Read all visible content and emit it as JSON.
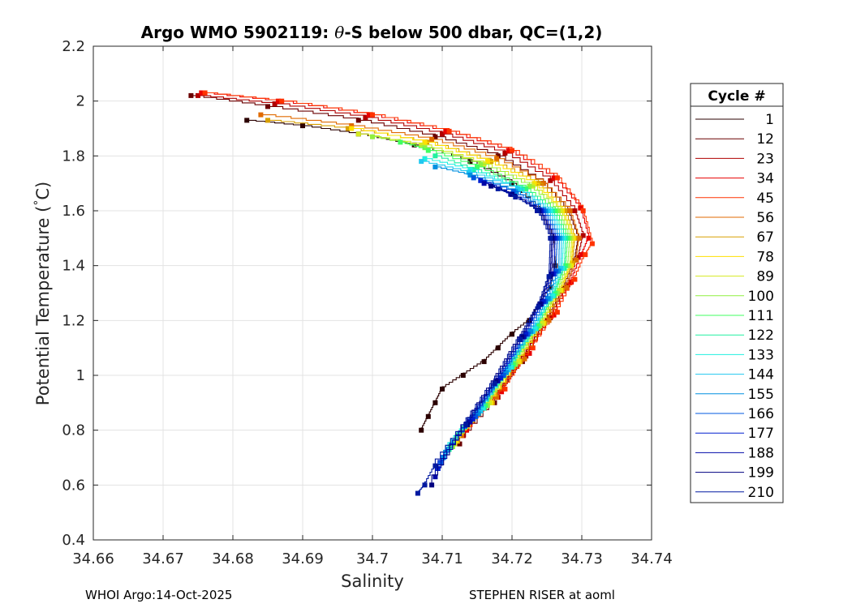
{
  "title": {
    "prefix": "Argo WMO 5902119: ",
    "theta": "θ",
    "suffix": "-S below 500 dbar,  QC=(1,2)"
  },
  "footer": {
    "left": "WHOI Argo:14-Oct-2025",
    "right": "STEPHEN RISER at aoml"
  },
  "chart_data": {
    "type": "line",
    "xlabel": "Salinity",
    "ylabel_main": "Potential Temperature (",
    "ylabel_deg": "°",
    "ylabel_unit": "C)",
    "xlim": [
      34.66,
      34.74
    ],
    "ylim": [
      0.4,
      2.2
    ],
    "xticks": [
      34.66,
      34.67,
      34.68,
      34.69,
      34.7,
      34.71,
      34.72,
      34.73,
      34.74
    ],
    "xtick_labels": [
      "34.66",
      "34.67",
      "34.68",
      "34.69",
      "34.7",
      "34.71",
      "34.72",
      "34.73",
      "34.74"
    ],
    "yticks": [
      0.4,
      0.6,
      0.8,
      1.0,
      1.2,
      1.4,
      1.6,
      1.8,
      2.0,
      2.2
    ],
    "ytick_labels": [
      "0.4",
      "0.6",
      "0.8",
      "1",
      "1.2",
      "1.4",
      "1.6",
      "1.8",
      "2",
      "2.2"
    ],
    "grid": true,
    "legend": {
      "title": "Cycle #",
      "position": "right",
      "entries": [
        {
          "label": "1",
          "color": "#2b0000"
        },
        {
          "label": "12",
          "color": "#6b0000"
        },
        {
          "label": "23",
          "color": "#b00000"
        },
        {
          "label": "34",
          "color": "#e80000"
        },
        {
          "label": "45",
          "color": "#ff3300"
        },
        {
          "label": "56",
          "color": "#e06a00"
        },
        {
          "label": "67",
          "color": "#d8a000"
        },
        {
          "label": "78",
          "color": "#ffe000"
        },
        {
          "label": "89",
          "color": "#d4ea20"
        },
        {
          "label": "100",
          "color": "#90f040"
        },
        {
          "label": "111",
          "color": "#40ff60"
        },
        {
          "label": "122",
          "color": "#20f0a0"
        },
        {
          "label": "133",
          "color": "#20f0e0"
        },
        {
          "label": "144",
          "color": "#20c8f0"
        },
        {
          "label": "155",
          "color": "#0090e0"
        },
        {
          "label": "166",
          "color": "#0058e0"
        },
        {
          "label": "177",
          "color": "#0020d0"
        },
        {
          "label": "188",
          "color": "#0008a8"
        },
        {
          "label": "199",
          "color": "#000080"
        },
        {
          "label": "210",
          "color": "#0018a0"
        }
      ]
    },
    "series": [
      {
        "name": "1",
        "color": "#2b0000",
        "S": [
          34.707,
          34.708,
          34.709,
          34.71,
          34.713,
          34.716,
          34.718,
          34.72,
          34.7225,
          34.724,
          34.7255,
          34.7262,
          34.726,
          34.724,
          34.72,
          34.714,
          34.706,
          34.698,
          34.69,
          34.682
        ],
        "T": [
          0.8,
          0.85,
          0.9,
          0.95,
          1.0,
          1.05,
          1.1,
          1.15,
          1.2,
          1.26,
          1.32,
          1.4,
          1.5,
          1.6,
          1.7,
          1.78,
          1.84,
          1.88,
          1.91,
          1.93
        ]
      },
      {
        "name": "12",
        "color": "#6b0000",
        "S": [
          34.7125,
          34.7175,
          34.7215,
          34.725,
          34.7275,
          34.729,
          34.7295,
          34.728,
          34.7245,
          34.718,
          34.709,
          34.698,
          34.685,
          34.674
        ],
        "T": [
          0.75,
          0.9,
          1.05,
          1.2,
          1.32,
          1.42,
          1.5,
          1.6,
          1.7,
          1.8,
          1.87,
          1.93,
          1.98,
          2.02
        ]
      },
      {
        "name": "23",
        "color": "#b00000",
        "S": [
          34.713,
          34.718,
          34.722,
          34.7255,
          34.728,
          34.7295,
          34.7302,
          34.729,
          34.7255,
          34.719,
          34.71,
          34.699,
          34.686,
          34.675
        ],
        "T": [
          0.78,
          0.92,
          1.07,
          1.21,
          1.33,
          1.43,
          1.51,
          1.6,
          1.71,
          1.81,
          1.88,
          1.94,
          1.99,
          2.02
        ]
      },
      {
        "name": "34",
        "color": "#e80000",
        "S": [
          34.7135,
          34.7185,
          34.7225,
          34.726,
          34.7285,
          34.73,
          34.731,
          34.7298,
          34.726,
          34.7195,
          34.7105,
          34.6995,
          34.6865,
          34.6755
        ],
        "T": [
          0.8,
          0.94,
          1.08,
          1.22,
          1.34,
          1.44,
          1.5,
          1.61,
          1.72,
          1.82,
          1.89,
          1.95,
          2.0,
          2.03
        ]
      },
      {
        "name": "45",
        "color": "#ff3300",
        "S": [
          34.714,
          34.719,
          34.723,
          34.7265,
          34.729,
          34.7305,
          34.7315,
          34.7302,
          34.7265,
          34.72,
          34.711,
          34.7,
          34.687,
          34.676
        ],
        "T": [
          0.82,
          0.95,
          1.1,
          1.23,
          1.35,
          1.44,
          1.48,
          1.6,
          1.72,
          1.82,
          1.89,
          1.95,
          2.0,
          2.03
        ]
      },
      {
        "name": "56",
        "color": "#e06a00",
        "S": [
          34.7128,
          34.7178,
          34.7218,
          34.7253,
          34.7278,
          34.7292,
          34.7296,
          34.7283,
          34.7245,
          34.7178,
          34.7085,
          34.697,
          34.684
        ],
        "T": [
          0.78,
          0.92,
          1.06,
          1.2,
          1.32,
          1.42,
          1.5,
          1.6,
          1.7,
          1.79,
          1.86,
          1.91,
          1.95
        ]
      },
      {
        "name": "67",
        "color": "#d8a000",
        "S": [
          34.7122,
          34.7172,
          34.7212,
          34.7247,
          34.7272,
          34.7287,
          34.729,
          34.7276,
          34.7238,
          34.717,
          34.7078,
          34.6965,
          34.685
        ],
        "T": [
          0.76,
          0.9,
          1.05,
          1.19,
          1.31,
          1.41,
          1.5,
          1.6,
          1.7,
          1.78,
          1.85,
          1.9,
          1.93
        ]
      },
      {
        "name": "78",
        "color": "#ffe000",
        "S": [
          34.712,
          34.717,
          34.721,
          34.7245,
          34.727,
          34.7285,
          34.7288,
          34.7272,
          34.7232,
          34.7165,
          34.7075,
          34.697
        ],
        "T": [
          0.76,
          0.9,
          1.05,
          1.19,
          1.31,
          1.4,
          1.5,
          1.6,
          1.7,
          1.78,
          1.85,
          1.9
        ]
      },
      {
        "name": "89",
        "color": "#d4ea20",
        "S": [
          34.7118,
          34.7168,
          34.7208,
          34.7243,
          34.7268,
          34.7283,
          34.7286,
          34.727,
          34.723,
          34.716,
          34.707,
          34.698
        ],
        "T": [
          0.75,
          0.9,
          1.05,
          1.19,
          1.31,
          1.4,
          1.5,
          1.6,
          1.69,
          1.77,
          1.84,
          1.88
        ]
      },
      {
        "name": "100",
        "color": "#90f040",
        "S": [
          34.7115,
          34.7165,
          34.7205,
          34.724,
          34.7265,
          34.728,
          34.7283,
          34.7266,
          34.7225,
          34.7155,
          34.7075,
          34.7
        ],
        "T": [
          0.74,
          0.89,
          1.04,
          1.18,
          1.3,
          1.4,
          1.5,
          1.6,
          1.69,
          1.77,
          1.83,
          1.87
        ]
      },
      {
        "name": "111",
        "color": "#40ff60",
        "S": [
          34.7112,
          34.7162,
          34.7202,
          34.7237,
          34.7262,
          34.7277,
          34.728,
          34.7262,
          34.722,
          34.715,
          34.708,
          34.704
        ],
        "T": [
          0.74,
          0.89,
          1.04,
          1.18,
          1.3,
          1.4,
          1.5,
          1.6,
          1.68,
          1.76,
          1.82,
          1.85
        ]
      },
      {
        "name": "122",
        "color": "#20f0a0",
        "S": [
          34.711,
          34.716,
          34.72,
          34.7235,
          34.726,
          34.7275,
          34.7277,
          34.7258,
          34.7215,
          34.7145,
          34.709
        ],
        "T": [
          0.73,
          0.88,
          1.03,
          1.17,
          1.29,
          1.39,
          1.5,
          1.6,
          1.68,
          1.75,
          1.8
        ]
      },
      {
        "name": "133",
        "color": "#20f0e0",
        "S": [
          34.7108,
          34.7158,
          34.7198,
          34.7233,
          34.7258,
          34.7272,
          34.7274,
          34.7255,
          34.721,
          34.714,
          34.7075
        ],
        "T": [
          0.73,
          0.88,
          1.03,
          1.17,
          1.29,
          1.39,
          1.5,
          1.6,
          1.68,
          1.75,
          1.79
        ]
      },
      {
        "name": "144",
        "color": "#20c8f0",
        "S": [
          34.7105,
          34.7155,
          34.7195,
          34.723,
          34.7255,
          34.727,
          34.7271,
          34.7252,
          34.7208,
          34.7138,
          34.707
        ],
        "T": [
          0.72,
          0.87,
          1.02,
          1.16,
          1.28,
          1.39,
          1.5,
          1.6,
          1.68,
          1.74,
          1.78
        ]
      },
      {
        "name": "155",
        "color": "#0090e0",
        "S": [
          34.7102,
          34.7152,
          34.7192,
          34.7227,
          34.7252,
          34.7267,
          34.7268,
          34.7248,
          34.7205,
          34.714,
          34.709
        ],
        "T": [
          0.7,
          0.86,
          1.01,
          1.16,
          1.28,
          1.38,
          1.5,
          1.6,
          1.67,
          1.73,
          1.76
        ]
      },
      {
        "name": "166",
        "color": "#0058e0",
        "S": [
          34.7098,
          34.7148,
          34.7188,
          34.7223,
          34.7248,
          34.7263,
          34.7265,
          34.7245,
          34.7202,
          34.7145
        ],
        "T": [
          0.68,
          0.85,
          1.0,
          1.15,
          1.27,
          1.38,
          1.5,
          1.6,
          1.67,
          1.72
        ]
      },
      {
        "name": "177",
        "color": "#0020d0",
        "S": [
          34.7094,
          34.7144,
          34.7184,
          34.722,
          34.7245,
          34.726,
          34.7262,
          34.7242,
          34.72,
          34.7155
        ],
        "T": [
          0.66,
          0.84,
          0.99,
          1.15,
          1.27,
          1.37,
          1.5,
          1.6,
          1.66,
          1.71
        ]
      },
      {
        "name": "188",
        "color": "#0008a8",
        "S": [
          34.709,
          34.714,
          34.718,
          34.7217,
          34.7242,
          34.7257,
          34.7259,
          34.724,
          34.7198,
          34.716
        ],
        "T": [
          0.63,
          0.83,
          0.98,
          1.14,
          1.26,
          1.37,
          1.5,
          1.6,
          1.66,
          1.7
        ]
      },
      {
        "name": "199",
        "color": "#000080",
        "S": [
          34.7085,
          34.7136,
          34.7177,
          34.7214,
          34.724,
          34.7255,
          34.7257,
          34.7238,
          34.72,
          34.717
        ],
        "T": [
          0.6,
          0.82,
          0.98,
          1.14,
          1.26,
          1.36,
          1.5,
          1.6,
          1.66,
          1.69
        ]
      },
      {
        "name": "210",
        "color": "#0018a0",
        "S": [
          34.7065,
          34.7075,
          34.709,
          34.7134,
          34.7175,
          34.7212,
          34.7238,
          34.7253,
          34.7255,
          34.7236,
          34.7205,
          34.718
        ],
        "T": [
          0.57,
          0.6,
          0.67,
          0.82,
          0.97,
          1.13,
          1.25,
          1.36,
          1.5,
          1.6,
          1.65,
          1.68
        ]
      }
    ]
  }
}
